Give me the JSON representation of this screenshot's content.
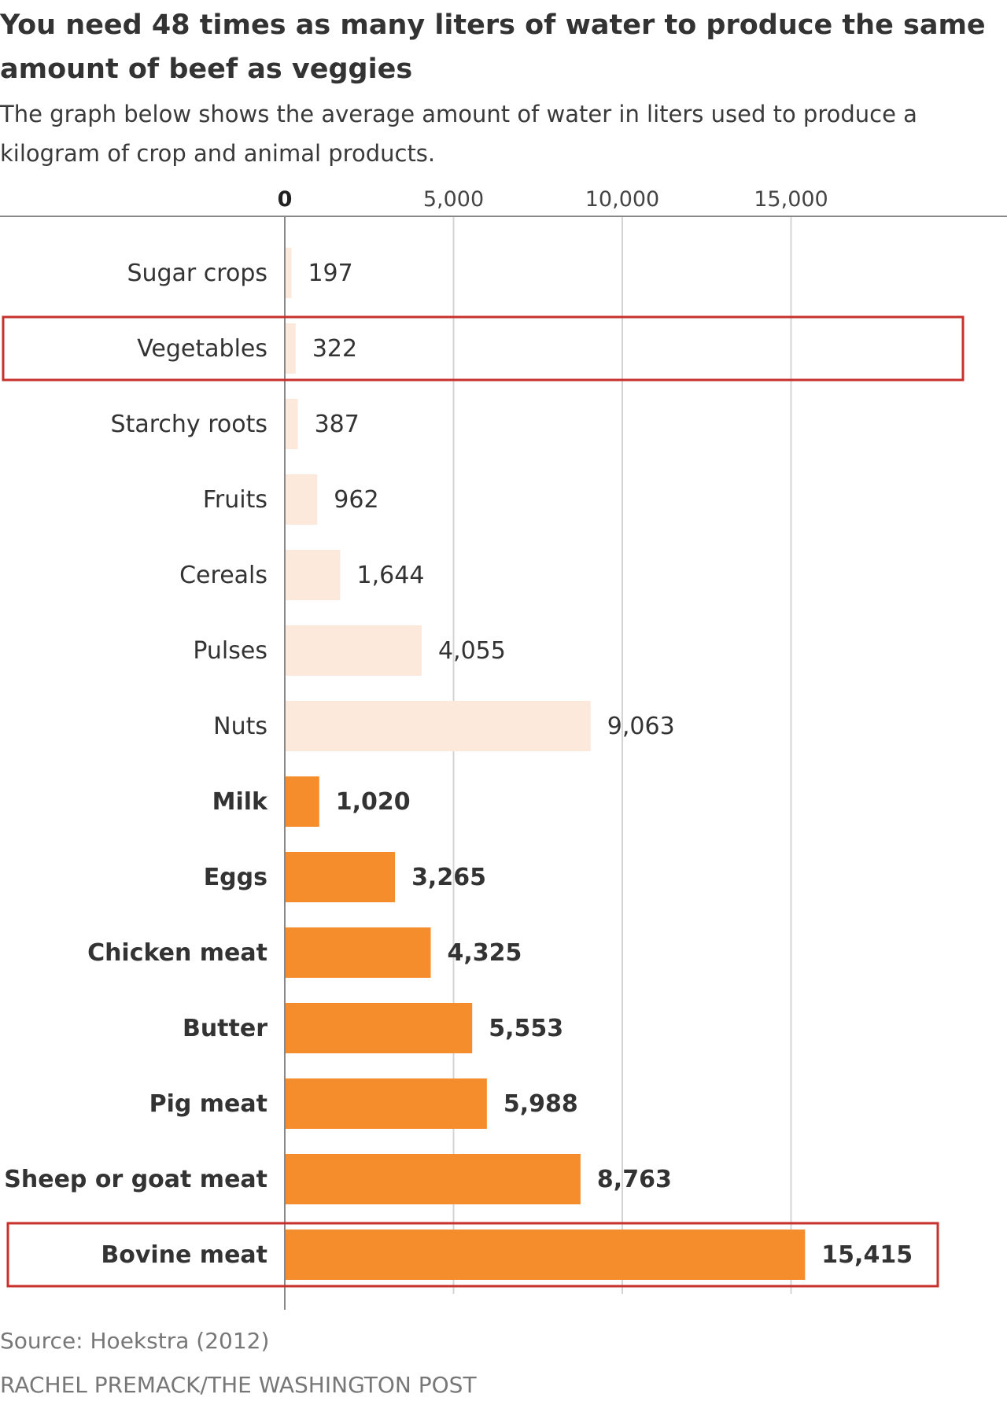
{
  "chart_data": {
    "type": "bar",
    "orientation": "horizontal",
    "title": "You need 48 times as many liters of water to produce the same amount of beef as veggies",
    "subtitle": "The graph below shows the average amount of water in liters used to produce a kilogram of crop and animal products.",
    "xlim": [
      0,
      19000
    ],
    "x_ticks": [
      {
        "value": 0,
        "label": "0"
      },
      {
        "value": 5000,
        "label": "5,000"
      },
      {
        "value": 10000,
        "label": "10,000"
      },
      {
        "value": 15000,
        "label": "15,000"
      }
    ],
    "grid": true,
    "series_groups": [
      {
        "group": "crop",
        "color": "#fde9dc"
      },
      {
        "group": "animal",
        "color": "#f58d2c"
      }
    ],
    "categories": [
      {
        "label": "Sugar crops",
        "value": 197,
        "value_label": "197",
        "group": "crop",
        "highlight": false
      },
      {
        "label": "Vegetables",
        "value": 322,
        "value_label": "322",
        "group": "crop",
        "highlight": true
      },
      {
        "label": "Starchy roots",
        "value": 387,
        "value_label": "387",
        "group": "crop",
        "highlight": false
      },
      {
        "label": "Fruits",
        "value": 962,
        "value_label": "962",
        "group": "crop",
        "highlight": false
      },
      {
        "label": "Cereals",
        "value": 1644,
        "value_label": "1,644",
        "group": "crop",
        "highlight": false
      },
      {
        "label": "Pulses",
        "value": 4055,
        "value_label": "4,055",
        "group": "crop",
        "highlight": false
      },
      {
        "label": "Nuts",
        "value": 9063,
        "value_label": "9,063",
        "group": "crop",
        "highlight": false
      },
      {
        "label": "Milk",
        "value": 1020,
        "value_label": "1,020",
        "group": "animal",
        "highlight": false
      },
      {
        "label": "Eggs",
        "value": 3265,
        "value_label": "3,265",
        "group": "animal",
        "highlight": false
      },
      {
        "label": "Chicken meat",
        "value": 4325,
        "value_label": "4,325",
        "group": "animal",
        "highlight": false
      },
      {
        "label": "Butter",
        "value": 5553,
        "value_label": "5,553",
        "group": "animal",
        "highlight": false
      },
      {
        "label": "Pig meat",
        "value": 5988,
        "value_label": "5,988",
        "group": "animal",
        "highlight": false
      },
      {
        "label": "Sheep or goat meat",
        "value": 8763,
        "value_label": "8,763",
        "group": "animal",
        "highlight": false
      },
      {
        "label": "Bovine meat",
        "value": 15415,
        "value_label": "15,415",
        "group": "animal",
        "highlight": true
      }
    ],
    "highlight_color": "#c9302c"
  },
  "footer": {
    "source": "Source: Hoekstra (2012)",
    "credit": "RACHEL PREMACK/THE WASHINGTON POST"
  }
}
